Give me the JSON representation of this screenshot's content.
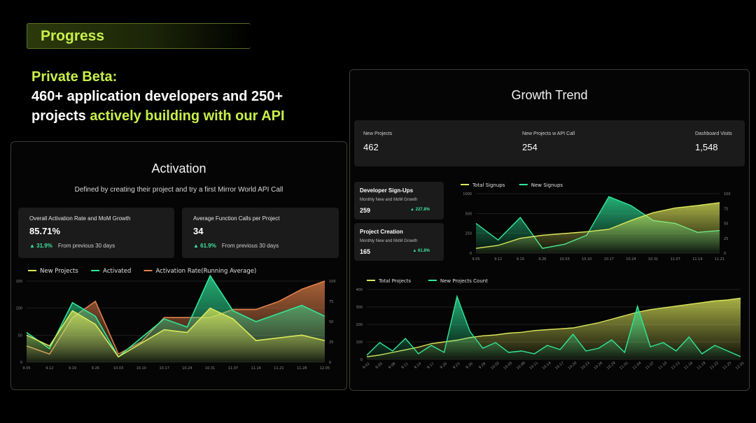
{
  "progress": {
    "label": "Progress"
  },
  "headline": {
    "title": "Private Beta:",
    "body_a": "460+ application developers and 250+ projects ",
    "body_b": "actively building with our API"
  },
  "activation": {
    "title": "Activation",
    "subtitle": "Defined by creating their project and try a first Mirror World API Call",
    "cards": [
      {
        "label": "Overall Activation Rate and MoM Growth",
        "value": "85.71%",
        "delta": "▲ 31.9%",
        "delta_text": "From previous 30 days"
      },
      {
        "label": "Average Function Calls per Project",
        "value": "34",
        "delta": "▲ 61.9%",
        "delta_text": "From previous 30 days"
      }
    ]
  },
  "growth": {
    "title": "Growth Trend",
    "stats": [
      {
        "label": "New Projects",
        "value": "462"
      },
      {
        "label": "New Projects w API Call",
        "value": "254"
      },
      {
        "label": "Dashboard Visits",
        "value": "1,548"
      }
    ],
    "mini_cards": [
      {
        "title": "Developer Sign-Ups",
        "sub": "Monthly New and MoM Growth",
        "value": "259",
        "delta": "▲ 227.8%"
      },
      {
        "title": "Project Creation",
        "sub": "Monthly New and MoM Growth",
        "value": "165",
        "delta": "▲ 61.8%"
      }
    ]
  },
  "colors": {
    "accent": "#c8f04a",
    "teal": "#2ee89a",
    "orange": "#e0804a",
    "yellow": "#dce85a"
  },
  "chart_data": [
    {
      "id": "activation",
      "type": "area",
      "title": "",
      "categories": [
        "9.05",
        "9.12",
        "9.19",
        "9.26",
        "10.03",
        "10.10",
        "10.17",
        "10.24",
        "10.31",
        "11.07",
        "11.14",
        "11.21",
        "11.28",
        "12.05"
      ],
      "ylim": [
        0,
        150
      ],
      "y2lim": [
        0,
        100
      ],
      "yticks": [
        "0",
        "50",
        "100",
        "150"
      ],
      "y2ticks": [
        "0",
        "25",
        "50",
        "75",
        "100"
      ],
      "legend": [
        "New Projects",
        "Activated",
        "Activation Rate(Running Average)"
      ],
      "series": [
        {
          "name": "New Projects",
          "axis": "left",
          "color": "#dce85a",
          "values": [
            50,
            30,
            95,
            70,
            10,
            35,
            60,
            55,
            100,
            80,
            40,
            45,
            50,
            40
          ]
        },
        {
          "name": "Activated",
          "axis": "left",
          "color": "#2ee89a",
          "values": [
            55,
            25,
            110,
            85,
            10,
            45,
            80,
            65,
            160,
            95,
            75,
            90,
            105,
            85
          ]
        },
        {
          "name": "Activation Rate(Running Average)",
          "axis": "right",
          "color": "#e0804a",
          "values": [
            20,
            10,
            55,
            75,
            10,
            25,
            55,
            55,
            55,
            65,
            65,
            75,
            90,
            100
          ]
        }
      ]
    },
    {
      "id": "signups",
      "type": "area",
      "categories": [
        "9.05",
        "9.12",
        "9.19",
        "9.26",
        "10.03",
        "10.10",
        "10.17",
        "10.24",
        "10.31",
        "11.07",
        "11.14",
        "11.21"
      ],
      "ylim": [
        0,
        1000
      ],
      "y2lim": [
        0,
        100
      ],
      "yticks": [
        "0",
        "250",
        "500",
        "1000"
      ],
      "y2ticks": [
        "0",
        "25",
        "50",
        "75",
        "100"
      ],
      "legend": [
        "Total Signups",
        "New Signups"
      ],
      "series": [
        {
          "name": "Total Signups",
          "axis": "left",
          "color": "#dce85a",
          "values": [
            80,
            130,
            250,
            300,
            330,
            360,
            400,
            550,
            680,
            760,
            800,
            850
          ]
        },
        {
          "name": "New Signups",
          "axis": "right",
          "color": "#2ee89a",
          "values": [
            50,
            22,
            60,
            8,
            15,
            30,
            95,
            80,
            55,
            50,
            35,
            38
          ]
        }
      ]
    },
    {
      "id": "projects",
      "type": "area",
      "categories": [
        "9.02",
        "9.05",
        "9.08",
        "9.11",
        "9.14",
        "9.17",
        "9.20",
        "9.23",
        "9.26",
        "9.29",
        "10.02",
        "10.05",
        "10.08",
        "10.11",
        "10.14",
        "10.17",
        "10.20",
        "10.23",
        "10.26",
        "10.29",
        "11.01",
        "11.04",
        "11.07",
        "11.10",
        "11.13",
        "11.16",
        "11.19",
        "11.22",
        "11.25",
        "12.01"
      ],
      "ylim": [
        0,
        400
      ],
      "y2lim": [
        0,
        50
      ],
      "yticks": [
        "0",
        "100",
        "200",
        "300",
        "400"
      ],
      "legend": [
        "Total Projects",
        "New Projects Count"
      ],
      "series": [
        {
          "name": "Total Projects",
          "axis": "left",
          "color": "#dce85a",
          "values": [
            15,
            25,
            40,
            55,
            70,
            90,
            100,
            110,
            125,
            135,
            140,
            150,
            155,
            165,
            170,
            175,
            180,
            195,
            210,
            230,
            250,
            270,
            285,
            295,
            305,
            315,
            325,
            335,
            340,
            350
          ]
        },
        {
          "name": "New Projects Count",
          "axis": "right",
          "color": "#2ee89a",
          "values": [
            3,
            12,
            6,
            15,
            4,
            10,
            5,
            45,
            20,
            8,
            12,
            5,
            6,
            4,
            10,
            7,
            18,
            6,
            8,
            14,
            5,
            38,
            9,
            12,
            6,
            16,
            4,
            10,
            6,
            2
          ]
        }
      ]
    }
  ]
}
